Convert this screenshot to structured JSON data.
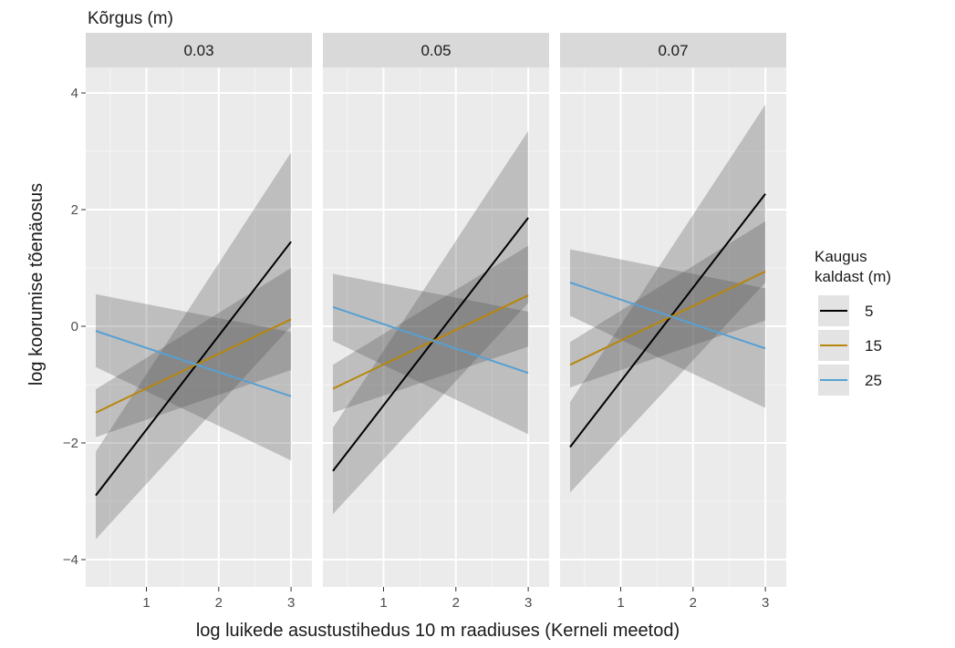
{
  "chart_data": {
    "type": "line",
    "facet_title": "Kõrgus (m)",
    "facets": [
      "0.03",
      "0.05",
      "0.07"
    ],
    "xlabel": "log luikede asustustihedus 10 m raadiuses (Kerneli meetod)",
    "ylabel": "log koorumise tõenäosus",
    "xlim": [
      0.2,
      3.2
    ],
    "ylim": [
      -4.2,
      4.2
    ],
    "xticks": [
      1,
      2,
      3
    ],
    "xtick_labels": [
      "1",
      "2",
      "3"
    ],
    "yticks": [
      -4,
      -2,
      0,
      2,
      4
    ],
    "ytick_labels": [
      "−4",
      "−2",
      "0",
      "2",
      "4"
    ],
    "grid": true,
    "legend": {
      "title_lines": [
        "Kaugus",
        "kaldast (m)"
      ],
      "position": "right",
      "entries": [
        {
          "label": "5",
          "color": "#000000"
        },
        {
          "label": "15",
          "color": "#B8860B"
        },
        {
          "label": "25",
          "color": "#56A0D3"
        }
      ]
    },
    "x_range": [
      0.3,
      3.0
    ],
    "panels": [
      {
        "facet": "0.03",
        "series": [
          {
            "name": "5",
            "color": "#000000",
            "y_start": -2.9,
            "y_end": 1.45,
            "ci_lower": [
              -3.65,
              0.0
            ],
            "ci_upper": [
              -2.15,
              2.98
            ]
          },
          {
            "name": "15",
            "color": "#B8860B",
            "y_start": -1.48,
            "y_end": 0.12,
            "ci_lower": [
              -1.9,
              -0.75
            ],
            "ci_upper": [
              -1.08,
              1.0
            ]
          },
          {
            "name": "25",
            "color": "#56A0D3",
            "y_start": -0.08,
            "y_end": -1.2,
            "ci_lower": [
              -0.7,
              -2.3
            ],
            "ci_upper": [
              0.55,
              -0.1
            ]
          }
        ]
      },
      {
        "facet": "0.05",
        "series": [
          {
            "name": "5",
            "color": "#000000",
            "y_start": -2.48,
            "y_end": 1.86,
            "ci_lower": [
              -3.22,
              0.4
            ],
            "ci_upper": [
              -1.74,
              3.35
            ]
          },
          {
            "name": "15",
            "color": "#B8860B",
            "y_start": -1.07,
            "y_end": 0.53,
            "ci_lower": [
              -1.48,
              -0.35
            ],
            "ci_upper": [
              -0.66,
              1.38
            ]
          },
          {
            "name": "25",
            "color": "#56A0D3",
            "y_start": 0.33,
            "y_end": -0.8,
            "ci_lower": [
              -0.25,
              -1.85
            ],
            "ci_upper": [
              0.9,
              0.25
            ]
          }
        ]
      },
      {
        "facet": "0.07",
        "series": [
          {
            "name": "5",
            "color": "#000000",
            "y_start": -2.07,
            "y_end": 2.27,
            "ci_lower": [
              -2.85,
              0.75
            ],
            "ci_upper": [
              -1.3,
              3.8
            ]
          },
          {
            "name": "15",
            "color": "#B8860B",
            "y_start": -0.66,
            "y_end": 0.94,
            "ci_lower": [
              -1.05,
              0.1
            ],
            "ci_upper": [
              -0.27,
              1.8
            ]
          },
          {
            "name": "25",
            "color": "#56A0D3",
            "y_start": 0.75,
            "y_end": -0.38,
            "ci_lower": [
              0.18,
              -1.4
            ],
            "ci_upper": [
              1.32,
              0.65
            ]
          }
        ]
      }
    ]
  }
}
